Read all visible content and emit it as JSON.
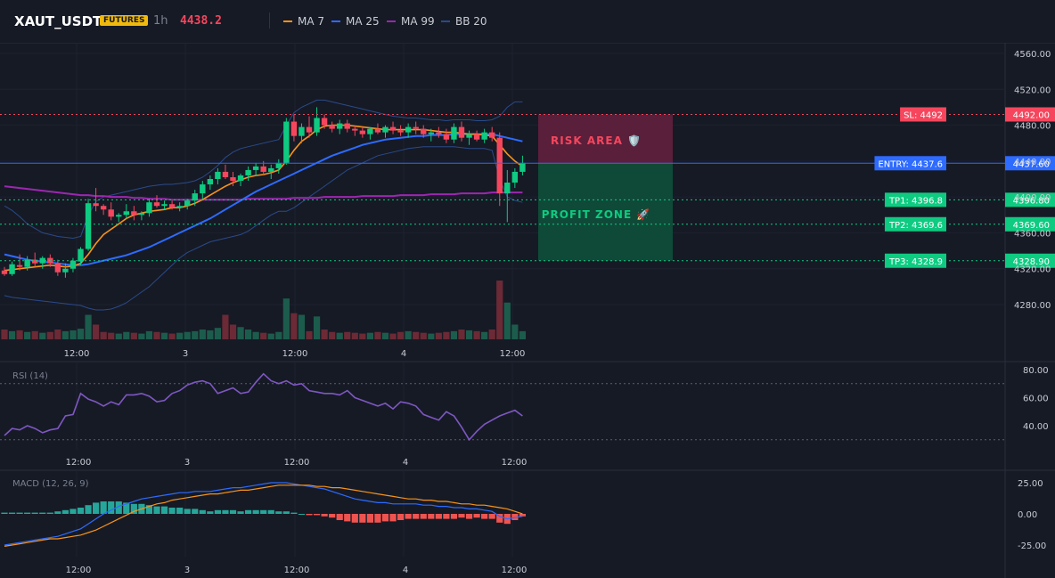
{
  "header": {
    "symbol": "XAUT_USDT",
    "badge": "FUTURES",
    "timeframe": "1h",
    "last_price": "4438.2",
    "indicators": [
      {
        "label": "MA 7",
        "color": "#f7931a"
      },
      {
        "label": "MA 25",
        "color": "#2e6bff"
      },
      {
        "label": "MA 99",
        "color": "#9c27b0"
      },
      {
        "label": "BB 20",
        "color": "#2a4a8a"
      }
    ]
  },
  "colors": {
    "background": "#161a25",
    "up": "#0ecb81",
    "down": "#f6465d",
    "sl": "#f6465d",
    "entry": "#2e6bff",
    "tp": "#0ecb81",
    "rsi": "#7e57c2",
    "macd": "#2e6bff",
    "signal": "#f7931a"
  },
  "time_axis": [
    "12:00",
    "3",
    "12:00",
    "4",
    "12:00"
  ],
  "price_axis": [
    "4560.00",
    "4520.00",
    "4480.00",
    "4440.00",
    "4400.00",
    "4360.00",
    "4320.00",
    "4280.00"
  ],
  "price_levels": [
    {
      "label": "SL: 4492",
      "value": "4492.00",
      "price": 4492,
      "kind": "sl"
    },
    {
      "label": "ENTRY: 4437.6",
      "value": "4437.60",
      "price": 4437.6,
      "kind": "entry"
    },
    {
      "label": "TP1: 4396.8",
      "value": "4396.80",
      "price": 4396.8,
      "kind": "tp"
    },
    {
      "label": "TP2: 4369.6",
      "value": "4369.60",
      "price": 4369.6,
      "kind": "tp"
    },
    {
      "label": "TP3: 4328.9",
      "value": "4328.90",
      "price": 4328.9,
      "kind": "tp"
    }
  ],
  "zones": {
    "risk_label": "RISK AREA 🛡️",
    "profit_label": "PROFIT ZONE 🚀"
  },
  "rsi": {
    "title": "RSI (14)",
    "axis": [
      "80.00",
      "60.00",
      "40.00"
    ],
    "upper": 70,
    "lower": 30
  },
  "macd": {
    "title": "MACD (12, 26, 9)",
    "axis": [
      "25.00",
      "0.00",
      "-25.00"
    ]
  },
  "chart_data": {
    "type": "candlestick",
    "title": "",
    "ylim": [
      4260,
      4570
    ],
    "candles": [
      [
        4318,
        4322,
        4312,
        4314
      ],
      [
        4314,
        4328,
        4312,
        4325
      ],
      [
        4324,
        4336,
        4318,
        4322
      ],
      [
        4322,
        4334,
        4318,
        4330
      ],
      [
        4330,
        4338,
        4322,
        4326
      ],
      [
        4326,
        4334,
        4320,
        4332
      ],
      [
        4332,
        4336,
        4322,
        4326
      ],
      [
        4326,
        4330,
        4312,
        4316
      ],
      [
        4316,
        4326,
        4310,
        4320
      ],
      [
        4320,
        4332,
        4316,
        4329
      ],
      [
        4328,
        4344,
        4324,
        4342
      ],
      [
        4342,
        4398,
        4340,
        4393
      ],
      [
        4393,
        4410,
        4384,
        4390
      ],
      [
        4390,
        4392,
        4380,
        4386
      ],
      [
        4386,
        4394,
        4374,
        4378
      ],
      [
        4378,
        4382,
        4372,
        4380
      ],
      [
        4380,
        4392,
        4376,
        4384
      ],
      [
        4384,
        4390,
        4374,
        4380
      ],
      [
        4380,
        4384,
        4374,
        4382
      ],
      [
        4382,
        4398,
        4378,
        4394
      ],
      [
        4394,
        4402,
        4388,
        4390
      ],
      [
        4390,
        4396,
        4386,
        4392
      ],
      [
        4392,
        4396,
        4386,
        4388
      ],
      [
        4388,
        4394,
        4384,
        4390
      ],
      [
        4390,
        4398,
        4386,
        4396
      ],
      [
        4396,
        4408,
        4390,
        4404
      ],
      [
        4404,
        4418,
        4398,
        4414
      ],
      [
        4414,
        4424,
        4408,
        4420
      ],
      [
        4420,
        4432,
        4414,
        4428
      ],
      [
        4428,
        4436,
        4420,
        4422
      ],
      [
        4422,
        4428,
        4412,
        4418
      ],
      [
        4418,
        4426,
        4412,
        4424
      ],
      [
        4424,
        4434,
        4418,
        4430
      ],
      [
        4430,
        4438,
        4424,
        4434
      ],
      [
        4434,
        4440,
        4424,
        4428
      ],
      [
        4428,
        4436,
        4420,
        4432
      ],
      [
        4432,
        4442,
        4426,
        4438
      ],
      [
        4438,
        4488,
        4436,
        4484
      ],
      [
        4484,
        4492,
        4462,
        4468
      ],
      [
        4468,
        4482,
        4460,
        4478
      ],
      [
        4478,
        4490,
        4466,
        4472
      ],
      [
        4472,
        4500,
        4468,
        4488
      ],
      [
        4488,
        4492,
        4476,
        4480
      ],
      [
        4480,
        4484,
        4472,
        4476
      ],
      [
        4476,
        4486,
        4470,
        4482
      ],
      [
        4482,
        4486,
        4472,
        4476
      ],
      [
        4476,
        4480,
        4468,
        4474
      ],
      [
        4474,
        4478,
        4466,
        4470
      ],
      [
        4470,
        4478,
        4464,
        4476
      ],
      [
        4476,
        4482,
        4470,
        4472
      ],
      [
        4472,
        4480,
        4466,
        4478
      ],
      [
        4478,
        4484,
        4470,
        4474
      ],
      [
        4474,
        4480,
        4468,
        4472
      ],
      [
        4472,
        4482,
        4466,
        4478
      ],
      [
        4478,
        4484,
        4470,
        4476
      ],
      [
        4476,
        4480,
        4466,
        4470
      ],
      [
        4470,
        4476,
        4462,
        4472
      ],
      [
        4472,
        4478,
        4466,
        4470
      ],
      [
        4470,
        4476,
        4460,
        4464
      ],
      [
        4464,
        4482,
        4460,
        4478
      ],
      [
        4478,
        4484,
        4462,
        4466
      ],
      [
        4466,
        4474,
        4458,
        4470
      ],
      [
        4470,
        4474,
        4462,
        4464
      ],
      [
        4464,
        4476,
        4460,
        4472
      ],
      [
        4472,
        4478,
        4462,
        4466
      ],
      [
        4466,
        4472,
        4390,
        4404
      ],
      [
        4404,
        4430,
        4372,
        4416
      ],
      [
        4416,
        4432,
        4410,
        4428
      ],
      [
        4428,
        4446,
        4424,
        4438
      ]
    ],
    "volume": [
      12,
      10,
      11,
      9,
      10,
      8,
      9,
      12,
      10,
      11,
      13,
      30,
      18,
      9,
      8,
      7,
      9,
      8,
      7,
      10,
      9,
      8,
      7,
      8,
      9,
      10,
      12,
      11,
      14,
      30,
      18,
      15,
      12,
      9,
      8,
      7,
      9,
      50,
      32,
      30,
      10,
      28,
      12,
      9,
      8,
      9,
      8,
      7,
      8,
      9,
      8,
      7,
      9,
      10,
      9,
      8,
      7,
      8,
      9,
      10,
      12,
      11,
      10,
      9,
      12,
      72,
      45,
      18,
      10
    ],
    "vol_up": [
      false,
      true,
      false,
      true,
      false,
      true,
      false,
      false,
      true,
      true,
      true,
      true,
      false,
      false,
      false,
      true,
      true,
      false,
      true,
      true,
      false,
      true,
      false,
      true,
      true,
      true,
      true,
      true,
      true,
      false,
      false,
      true,
      true,
      true,
      false,
      true,
      true,
      true,
      false,
      true,
      false,
      true,
      false,
      false,
      true,
      false,
      false,
      false,
      true,
      false,
      true,
      false,
      false,
      true,
      false,
      false,
      true,
      false,
      false,
      true,
      false,
      true,
      false,
      true,
      false,
      false,
      true,
      true,
      true
    ],
    "ma7": [
      4318,
      4319,
      4320,
      4321,
      4322,
      4323,
      4324,
      4323,
      4322,
      4323,
      4326,
      4336,
      4348,
      4358,
      4364,
      4370,
      4376,
      4380,
      4382,
      4384,
      4385,
      4386,
      4388,
      4388,
      4390,
      4393,
      4397,
      4402,
      4407,
      4412,
      4416,
      4419,
      4422,
      4424,
      4425,
      4427,
      4430,
      4440,
      4452,
      4462,
      4468,
      4475,
      4479,
      4480,
      4480,
      4480,
      4479,
      4478,
      4477,
      4476,
      4475,
      4475,
      4475,
      4475,
      4475,
      4475,
      4474,
      4473,
      4472,
      4472,
      4471,
      4470,
      4470,
      4469,
      4468,
      4458,
      4448,
      4440,
      4434
    ],
    "ma25": [
      4336,
      4334,
      4332,
      4330,
      4329,
      4328,
      4327,
      4326,
      4325,
      4324,
      4324,
      4325,
      4327,
      4329,
      4331,
      4333,
      4335,
      4338,
      4341,
      4344,
      4348,
      4352,
      4356,
      4360,
      4364,
      4368,
      4372,
      4376,
      4381,
      4386,
      4391,
      4396,
      4401,
      4406,
      4410,
      4414,
      4418,
      4422,
      4426,
      4430,
      4434,
      4438,
      4442,
      4446,
      4449,
      4452,
      4455,
      4458,
      4460,
      4462,
      4464,
      4465,
      4466,
      4467,
      4468,
      4468,
      4469,
      4469,
      4469,
      4470,
      4470,
      4470,
      4470,
      4470,
      4470,
      4468,
      4466,
      4464,
      4462
    ],
    "ma99": [
      4412,
      4411,
      4410,
      4409,
      4408,
      4407,
      4406,
      4405,
      4404,
      4403,
      4402,
      4402,
      4401,
      4401,
      4400,
      4400,
      4400,
      4399,
      4399,
      4398,
      4398,
      4398,
      4397,
      4397,
      4397,
      4397,
      4397,
      4397,
      4397,
      4397,
      4397,
      4397,
      4398,
      4398,
      4398,
      4398,
      4398,
      4398,
      4399,
      4399,
      4399,
      4399,
      4400,
      4400,
      4400,
      4400,
      4400,
      4401,
      4401,
      4401,
      4401,
      4401,
      4402,
      4402,
      4402,
      4402,
      4403,
      4403,
      4403,
      4403,
      4404,
      4404,
      4404,
      4404,
      4405,
      4405,
      4405,
      4405,
      4405
    ],
    "bb_upper": [
      4390,
      4385,
      4378,
      4370,
      4365,
      4360,
      4358,
      4356,
      4355,
      4354,
      4356,
      4380,
      4395,
      4400,
      4402,
      4404,
      4406,
      4408,
      4410,
      4412,
      4413,
      4414,
      4414,
      4415,
      4416,
      4418,
      4422,
      4428,
      4435,
      4444,
      4450,
      4454,
      4456,
      4458,
      4460,
      4462,
      4464,
      4480,
      4494,
      4500,
      4504,
      4508,
      4508,
      4506,
      4504,
      4502,
      4500,
      4498,
      4496,
      4494,
      4492,
      4490,
      4489,
      4488,
      4488,
      4487,
      4486,
      4486,
      4485,
      4486,
      4486,
      4486,
      4485,
      4485,
      4486,
      4490,
      4500,
      4506,
      4506
    ],
    "bb_lower": [
      4290,
      4288,
      4287,
      4286,
      4285,
      4284,
      4283,
      4282,
      4281,
      4280,
      4279,
      4276,
      4274,
      4274,
      4275,
      4278,
      4282,
      4288,
      4294,
      4300,
      4308,
      4316,
      4324,
      4332,
      4338,
      4342,
      4346,
      4350,
      4352,
      4354,
      4356,
      4358,
      4362,
      4368,
      4374,
      4380,
      4384,
      4384,
      4388,
      4394,
      4400,
      4406,
      4412,
      4418,
      4424,
      4430,
      4434,
      4438,
      4442,
      4446,
      4448,
      4450,
      4452,
      4454,
      4455,
      4456,
      4456,
      4456,
      4456,
      4456,
      4455,
      4454,
      4454,
      4454,
      4452,
      4420,
      4400,
      4396,
      4394
    ],
    "rsi_values": [
      33,
      38,
      37,
      40,
      38,
      35,
      37,
      38,
      47,
      48,
      63,
      59,
      57,
      54,
      57,
      55,
      62,
      62,
      63,
      61,
      57,
      58,
      63,
      65,
      69,
      71,
      72,
      70,
      63,
      65,
      67,
      63,
      64,
      71,
      77,
      72,
      70,
      72,
      69,
      70,
      65,
      64,
      63,
      63,
      62,
      65,
      60,
      58,
      56,
      54,
      56,
      52,
      57,
      56,
      54,
      48,
      46,
      44,
      50,
      47,
      39,
      30,
      36,
      41,
      44,
      47,
      49,
      51,
      47
    ],
    "macd_line": [
      -25,
      -24,
      -23,
      -22,
      -21,
      -20,
      -19,
      -18,
      -16,
      -14,
      -12,
      -8,
      -4,
      0,
      3,
      6,
      8,
      10,
      12,
      13,
      14,
      15,
      16,
      17,
      17,
      18,
      18,
      18,
      19,
      20,
      21,
      21,
      22,
      23,
      24,
      25,
      25,
      25,
      24,
      23,
      22,
      21,
      20,
      18,
      16,
      14,
      12,
      11,
      10,
      9,
      9,
      8,
      8,
      8,
      8,
      7,
      7,
      6,
      6,
      5,
      5,
      4,
      4,
      3,
      2,
      -2,
      -4,
      -3,
      -2
    ],
    "signal_line": [
      -26,
      -25,
      -24,
      -23,
      -22,
      -21,
      -20,
      -20,
      -19,
      -18,
      -17,
      -15,
      -13,
      -10,
      -7,
      -4,
      -1,
      2,
      4,
      6,
      8,
      9,
      11,
      12,
      13,
      14,
      15,
      16,
      16,
      17,
      18,
      19,
      19,
      20,
      21,
      22,
      23,
      23,
      23,
      23,
      23,
      22,
      22,
      21,
      21,
      20,
      19,
      18,
      17,
      16,
      15,
      14,
      13,
      12,
      12,
      11,
      11,
      10,
      10,
      9,
      8,
      8,
      7,
      7,
      6,
      5,
      4,
      2,
      0
    ],
    "histogram": [
      1,
      1,
      1,
      1,
      1,
      1,
      1,
      2,
      3,
      4,
      5,
      7,
      9,
      10,
      10,
      10,
      9,
      8,
      8,
      7,
      6,
      6,
      5,
      5,
      4,
      4,
      3,
      2,
      3,
      3,
      3,
      2,
      3,
      3,
      3,
      3,
      2,
      2,
      1,
      0,
      -1,
      -1,
      -2,
      -3,
      -5,
      -6,
      -7,
      -7,
      -7,
      -7,
      -6,
      -6,
      -5,
      -4,
      -4,
      -4,
      -4,
      -4,
      -4,
      -4,
      -3,
      -4,
      -3,
      -4,
      -4,
      -7,
      -8,
      -5,
      -2
    ]
  }
}
